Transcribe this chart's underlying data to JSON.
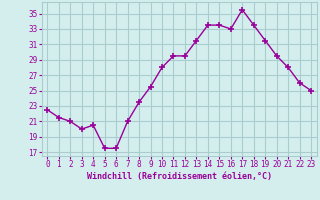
{
  "x": [
    0,
    1,
    2,
    3,
    4,
    5,
    6,
    7,
    8,
    9,
    10,
    11,
    12,
    13,
    14,
    15,
    16,
    17,
    18,
    19,
    20,
    21,
    22,
    23
  ],
  "y": [
    22.5,
    21.5,
    21.0,
    20.0,
    20.5,
    17.5,
    17.5,
    21.0,
    23.5,
    25.5,
    28.0,
    29.5,
    29.5,
    31.5,
    33.5,
    33.5,
    33.0,
    35.5,
    33.5,
    31.5,
    29.5,
    28.0,
    26.0,
    25.0
  ],
  "line_color": "#990099",
  "marker": "+",
  "marker_size": 5,
  "marker_lw": 1.2,
  "line_width": 1.0,
  "bg_color": "#d4eeee",
  "grid_color": "#aacccc",
  "xlabel": "Windchill (Refroidissement éolien,°C)",
  "xlabel_color": "#990099",
  "tick_color": "#990099",
  "ylim": [
    16.5,
    36.5
  ],
  "xlim": [
    -0.5,
    23.5
  ],
  "yticks": [
    17,
    19,
    21,
    23,
    25,
    27,
    29,
    31,
    33,
    35
  ],
  "xticks": [
    0,
    1,
    2,
    3,
    4,
    5,
    6,
    7,
    8,
    9,
    10,
    11,
    12,
    13,
    14,
    15,
    16,
    17,
    18,
    19,
    20,
    21,
    22,
    23
  ],
  "tick_fontsize": 5.5,
  "xlabel_fontsize": 6.0
}
